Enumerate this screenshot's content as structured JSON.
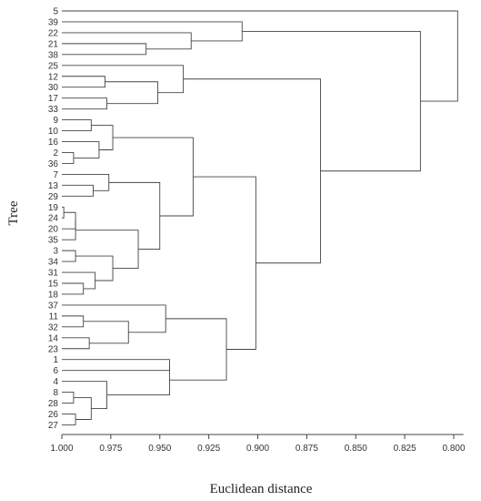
{
  "chart_data": {
    "type": "dendrogram",
    "xlabel": "Euclidean distance",
    "ylabel": "Tree",
    "xlim": [
      1.0,
      0.795
    ],
    "x_ticks": [
      "1.000",
      "0.975",
      "0.950",
      "0.925",
      "0.900",
      "0.875",
      "0.850",
      "0.825",
      "0.800"
    ],
    "x_tick_values": [
      1.0,
      0.975,
      0.95,
      0.925,
      0.9,
      0.875,
      0.85,
      0.825,
      0.8
    ],
    "leaves": [
      "5",
      "39",
      "22",
      "21",
      "38",
      "25",
      "12",
      "30",
      "17",
      "33",
      "9",
      "10",
      "16",
      "2",
      "36",
      "7",
      "13",
      "29",
      "19",
      "24",
      "20",
      "35",
      "3",
      "34",
      "31",
      "15",
      "18",
      "37",
      "11",
      "32",
      "14",
      "23",
      "1",
      "6",
      "4",
      "8",
      "28",
      "26",
      "27"
    ],
    "merges": [
      {
        "id": "m1",
        "children": [
          "19",
          "24"
        ],
        "height": 0.999
      },
      {
        "id": "m2",
        "children": [
          "m1",
          "20"
        ],
        "height": 0.993
      },
      {
        "id": "m3",
        "children": [
          "m2",
          "35"
        ],
        "height": 0.993
      },
      {
        "id": "m4",
        "children": [
          "2",
          "36"
        ],
        "height": 0.994
      },
      {
        "id": "m5",
        "children": [
          "8",
          "28"
        ],
        "height": 0.994
      },
      {
        "id": "m6",
        "children": [
          "26",
          "27"
        ],
        "height": 0.993
      },
      {
        "id": "m7",
        "children": [
          "3",
          "34"
        ],
        "height": 0.993
      },
      {
        "id": "m8",
        "children": [
          "15",
          "18"
        ],
        "height": 0.989
      },
      {
        "id": "m9",
        "children": [
          "11",
          "32"
        ],
        "height": 0.989
      },
      {
        "id": "m10",
        "children": [
          "9",
          "10"
        ],
        "height": 0.985
      },
      {
        "id": "m11",
        "children": [
          "m5",
          "m6"
        ],
        "height": 0.985
      },
      {
        "id": "m12",
        "children": [
          "14",
          "23"
        ],
        "height": 0.986
      },
      {
        "id": "m13",
        "children": [
          "31",
          "m8"
        ],
        "height": 0.983
      },
      {
        "id": "m14",
        "children": [
          "13",
          "29"
        ],
        "height": 0.984
      },
      {
        "id": "m15",
        "children": [
          "16",
          "m4"
        ],
        "height": 0.981
      },
      {
        "id": "m16",
        "children": [
          "12",
          "30"
        ],
        "height": 0.978
      },
      {
        "id": "m17",
        "children": [
          "17",
          "33"
        ],
        "height": 0.977
      },
      {
        "id": "m18",
        "children": [
          "7",
          "m14"
        ],
        "height": 0.976
      },
      {
        "id": "m19",
        "children": [
          "4",
          "m11"
        ],
        "height": 0.977
      },
      {
        "id": "m20",
        "children": [
          "m10",
          "m15"
        ],
        "height": 0.974
      },
      {
        "id": "m21",
        "children": [
          "m7",
          "m13"
        ],
        "height": 0.974
      },
      {
        "id": "m22",
        "children": [
          "m9",
          "m12"
        ],
        "height": 0.966
      },
      {
        "id": "m23",
        "children": [
          "m3",
          "m21"
        ],
        "height": 0.961
      },
      {
        "id": "m24",
        "children": [
          "21",
          "38"
        ],
        "height": 0.957
      },
      {
        "id": "m25",
        "children": [
          "m18",
          "m23"
        ],
        "height": 0.95
      },
      {
        "id": "m26",
        "children": [
          "m16",
          "m17"
        ],
        "height": 0.951
      },
      {
        "id": "m27",
        "children": [
          "37",
          "m22"
        ],
        "height": 0.947
      },
      {
        "id": "m28",
        "children": [
          "1",
          "6"
        ],
        "height": 0.945
      },
      {
        "id": "m29",
        "children": [
          "m28",
          "m19"
        ],
        "height": 0.945
      },
      {
        "id": "m30",
        "children": [
          "25",
          "m26"
        ],
        "height": 0.938
      },
      {
        "id": "m31",
        "children": [
          "m20",
          "m25"
        ],
        "height": 0.933
      },
      {
        "id": "m32",
        "children": [
          "22",
          "m24"
        ],
        "height": 0.934
      },
      {
        "id": "m33",
        "children": [
          "m27",
          "m29"
        ],
        "height": 0.916
      },
      {
        "id": "m34",
        "children": [
          "39",
          "m32"
        ],
        "height": 0.908
      },
      {
        "id": "m35",
        "children": [
          "m31",
          "m33"
        ],
        "height": 0.901
      },
      {
        "id": "m36",
        "children": [
          "m30",
          "m35"
        ],
        "height": 0.868
      },
      {
        "id": "m37",
        "children": [
          "m36",
          "m34"
        ],
        "height": 0.817
      },
      {
        "id": "m38",
        "children": [
          "5",
          "m37"
        ],
        "height": 0.798
      }
    ]
  }
}
